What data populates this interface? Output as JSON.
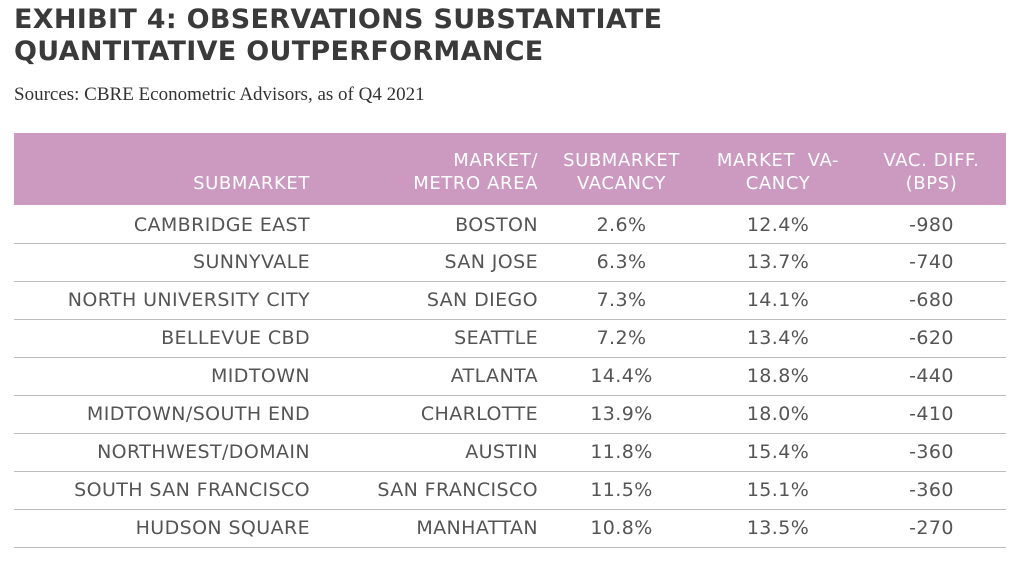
{
  "exhibit": {
    "title_line1": "EXHIBIT 4: OBSERVATIONS SUBSTANTIATE",
    "title_line2": "QUANTITATIVE OUTPERFORMANCE",
    "source": "Sources: CBRE Econometric Advisors, as of Q4 2021"
  },
  "colors": {
    "header_bg": "#cc9ac1",
    "header_text": "#ffffff",
    "body_text": "#555555",
    "row_divider": "#bdbdbd"
  },
  "table": {
    "headers": [
      [
        "SUBMARKET"
      ],
      [
        "MARKET/",
        "METRO AREA"
      ],
      [
        "SUBMARKET",
        "VACANCY"
      ],
      [
        "MARKET  VA-",
        "CANCY"
      ],
      [
        "VAC. DIFF.",
        "(BPS)"
      ]
    ],
    "rows": [
      [
        "CAMBRIDGE EAST",
        "BOSTON",
        "2.6%",
        "12.4%",
        "-980"
      ],
      [
        "SUNNYVALE",
        "SAN JOSE",
        "6.3%",
        "13.7%",
        "-740"
      ],
      [
        "NORTH UNIVERSITY CITY",
        "SAN DIEGO",
        "7.3%",
        "14.1%",
        "-680"
      ],
      [
        "BELLEVUE CBD",
        "SEATTLE",
        "7.2%",
        "13.4%",
        "-620"
      ],
      [
        "MIDTOWN",
        "ATLANTA",
        "14.4%",
        "18.8%",
        "-440"
      ],
      [
        "MIDTOWN/SOUTH END",
        "CHARLOTTE",
        "13.9%",
        "18.0%",
        "-410"
      ],
      [
        "NORTHWEST/DOMAIN",
        "AUSTIN",
        "11.8%",
        "15.4%",
        "-360"
      ],
      [
        "SOUTH SAN FRANCISCO",
        "SAN FRANCISCO",
        "11.5%",
        "15.1%",
        "-360"
      ],
      [
        "HUDSON SQUARE",
        "MANHATTAN",
        "10.8%",
        "13.5%",
        "-270"
      ]
    ]
  }
}
